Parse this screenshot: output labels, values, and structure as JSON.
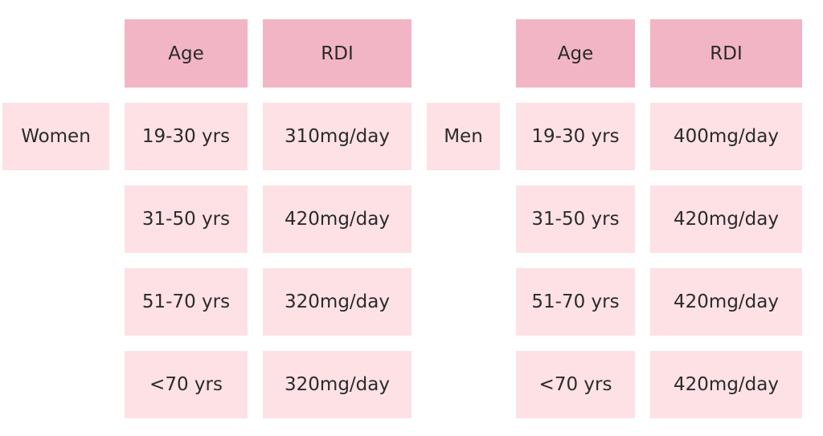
{
  "women": {
    "label": "Women",
    "age_header": "Age",
    "rdi_header": "RDI",
    "rows": [
      {
        "age": "19-30 yrs",
        "rdi": "310mg/day"
      },
      {
        "age": "31-50 yrs",
        "rdi": "420mg/day"
      },
      {
        "age": "51-70 yrs",
        "rdi": "320mg/day"
      },
      {
        "age": "<70 yrs",
        "rdi": "320mg/day"
      }
    ]
  },
  "men": {
    "label": "Men",
    "age_header": "Age",
    "rdi_header": "RDI",
    "rows": [
      {
        "age": "19-30 yrs",
        "rdi": "400mg/day"
      },
      {
        "age": "31-50 yrs",
        "rdi": "420mg/day"
      },
      {
        "age": "51-70 yrs",
        "rdi": "420mg/day"
      },
      {
        "age": "<70 yrs",
        "rdi": "420mg/day"
      }
    ]
  },
  "colors": {
    "header_bg": "#f2b5c5",
    "cell_bg": "#fde1e5",
    "text": "#2b2b2b"
  }
}
